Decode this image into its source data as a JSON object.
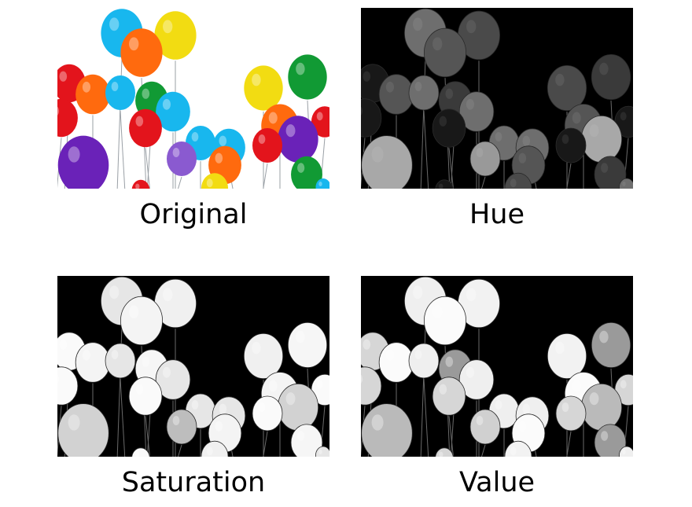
{
  "panels": [
    {
      "key": "original",
      "caption": "Original",
      "background": "#ffffff"
    },
    {
      "key": "hue",
      "caption": "Hue",
      "background": "#000000"
    },
    {
      "key": "saturation",
      "caption": "Saturation",
      "background": "#000000"
    },
    {
      "key": "value",
      "caption": "Value",
      "background": "#000000"
    }
  ],
  "balloon_colors": {
    "cyan": "#18b7ee",
    "orange": "#ff6a0e",
    "yellow": "#f2dc12",
    "red": "#e3141c",
    "green": "#119a34",
    "purple": "#6a22b8",
    "violet": "#8a5ad0"
  }
}
